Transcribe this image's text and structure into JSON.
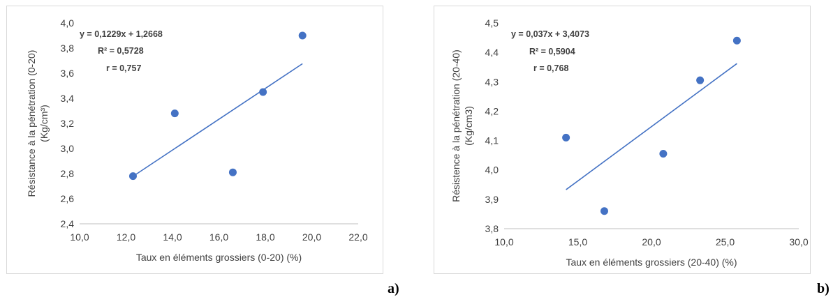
{
  "figure_labels": [
    "a)",
    "b)"
  ],
  "chart_data": [
    {
      "type": "scatter",
      "title": "",
      "xlabel": "Taux en éléments grossiers (0-20) (%)",
      "ylabel": [
        "Résistance à la pénétration (0-20)",
        "(Kg/cm³)"
      ],
      "xlim": [
        10,
        22
      ],
      "ylim": [
        2.4,
        4.0
      ],
      "xticks": [
        10,
        12,
        14,
        16,
        18,
        20,
        22
      ],
      "xtick_labels": [
        "10,0",
        "12,0",
        "14,0",
        "16,0",
        "18,0",
        "20,0",
        "22,0"
      ],
      "yticks": [
        2.4,
        2.6,
        2.8,
        3.0,
        3.2,
        3.4,
        3.6,
        3.8,
        4.0
      ],
      "ytick_labels": [
        "2,4",
        "2,6",
        "2,8",
        "3,0",
        "3,2",
        "3,4",
        "3,6",
        "3,8",
        "4,0"
      ],
      "grid": false,
      "points": [
        {
          "x": 12.3,
          "y": 2.78
        },
        {
          "x": 14.1,
          "y": 3.28
        },
        {
          "x": 16.6,
          "y": 2.81
        },
        {
          "x": 17.9,
          "y": 3.45
        },
        {
          "x": 19.6,
          "y": 3.9
        }
      ],
      "trendline": {
        "slope": 0.1229,
        "intercept": 1.2668,
        "x_range": [
          12.3,
          19.6
        ]
      },
      "annotations": [
        "y = 0,1229x + 1,2668",
        "R² = 0,5728",
        "r = 0,757"
      ],
      "colors": {
        "point": "#4472c4",
        "line": "#4472c4"
      }
    },
    {
      "type": "scatter",
      "title": "",
      "xlabel": "Taux en éléments grossiers (20-40) (%)",
      "ylabel": [
        "Résistence à la pénétration (20-40)",
        "(Kg/cm3)"
      ],
      "xlim": [
        10,
        30
      ],
      "ylim": [
        3.8,
        4.5
      ],
      "xticks": [
        10,
        15,
        20,
        25,
        30
      ],
      "xtick_labels": [
        "10,0",
        "15,0",
        "20,0",
        "25,0",
        "30,0"
      ],
      "yticks": [
        3.8,
        3.9,
        4.0,
        4.1,
        4.2,
        4.3,
        4.4,
        4.5
      ],
      "ytick_labels": [
        "3,8",
        "3,9",
        "4,0",
        "4,1",
        "4,2",
        "4,3",
        "4,4",
        "4,5"
      ],
      "grid": false,
      "points": [
        {
          "x": 14.2,
          "y": 4.11
        },
        {
          "x": 16.8,
          "y": 3.86
        },
        {
          "x": 20.8,
          "y": 4.055
        },
        {
          "x": 23.3,
          "y": 4.305
        },
        {
          "x": 25.8,
          "y": 4.44
        }
      ],
      "trendline": {
        "slope": 0.037,
        "intercept": 3.4073,
        "x_range": [
          14.2,
          25.8
        ]
      },
      "annotations": [
        "y = 0,037x + 3,4073",
        "R² = 0,5904",
        "r = 0,768"
      ],
      "colors": {
        "point": "#4472c4",
        "line": "#4472c4"
      }
    }
  ]
}
